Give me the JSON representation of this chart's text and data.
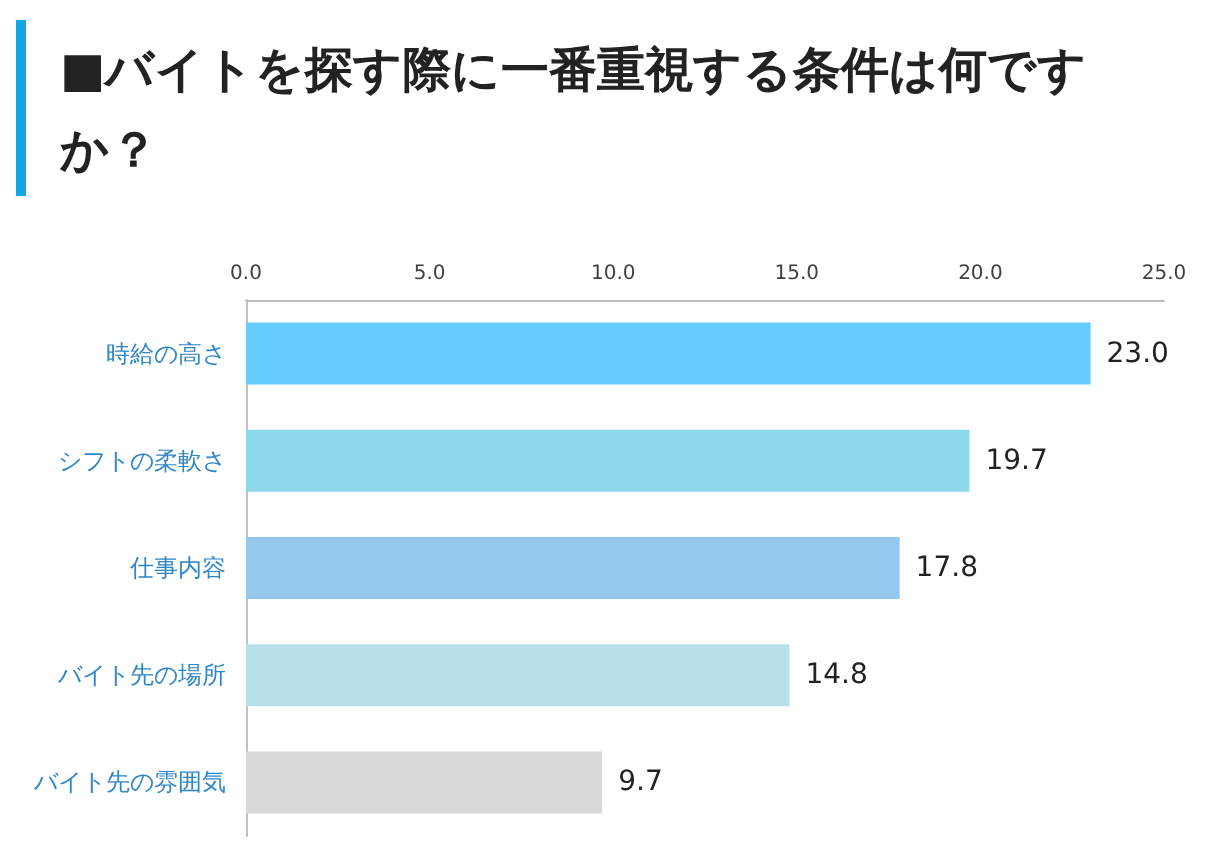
{
  "chart_data": {
    "type": "bar",
    "title": "■バイトを探す際に一番重視する条件は何ですか？",
    "orientation": "horizontal",
    "categories": [
      "時給の高さ",
      "シフトの柔軟さ",
      "仕事内容",
      "バイト先の場所",
      "バイト先の雰囲気"
    ],
    "values": [
      23.0,
      19.7,
      17.8,
      14.8,
      9.7
    ],
    "colors": [
      "#66ccff",
      "#8dd8ec",
      "#94c8ec",
      "#b8e0ea",
      "#d9d9d9"
    ],
    "value_labels": [
      "23.0",
      "19.7",
      "17.8",
      "14.8",
      "9.7"
    ],
    "xlim": [
      0,
      25
    ],
    "xticks": [
      {
        "value": 0,
        "label": "0.0"
      },
      {
        "value": 5,
        "label": "5.0"
      },
      {
        "value": 10,
        "label": "10.0"
      },
      {
        "value": 15,
        "label": "15.0"
      },
      {
        "value": 20,
        "label": "20.0"
      },
      {
        "value": 25,
        "label": "25.0"
      }
    ],
    "grid": false
  }
}
